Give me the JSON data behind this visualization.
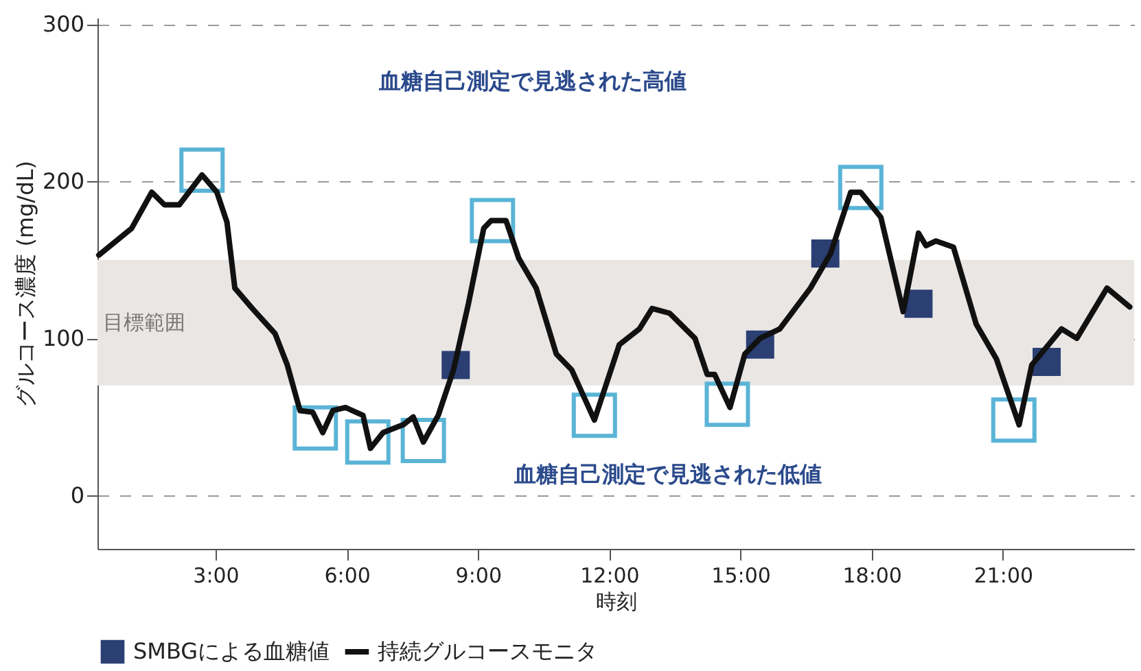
{
  "chart_data": {
    "type": "line",
    "xlabel": "時刻",
    "ylabel": "グルコース濃度 (mg/dL)",
    "xlim": [
      0.3,
      24
    ],
    "ylim": [
      -34,
      304
    ],
    "xticks": [
      {
        "value": 3,
        "label": "3:00"
      },
      {
        "value": 6,
        "label": "6:00"
      },
      {
        "value": 9,
        "label": "9:00"
      },
      {
        "value": 12,
        "label": "12:00"
      },
      {
        "value": 15,
        "label": "15:00"
      },
      {
        "value": 18,
        "label": "18:00"
      },
      {
        "value": 21,
        "label": "21:00"
      }
    ],
    "yticks": [
      0,
      100,
      200,
      300
    ],
    "grid": "y",
    "legend": "bottom",
    "series": [
      {
        "name": "持続グルコースモニタ",
        "color": "#111111",
        "line_style": "solid",
        "marker": "none",
        "x": [
          0.33,
          1.08,
          1.54,
          1.83,
          2.17,
          2.69,
          3.03,
          3.26,
          3.44,
          3.84,
          4.36,
          4.64,
          4.93,
          5.22,
          5.45,
          5.68,
          5.97,
          6.37,
          6.54,
          6.83,
          7.29,
          7.52,
          7.75,
          8.09,
          8.44,
          8.78,
          9.13,
          9.3,
          9.64,
          9.93,
          10.33,
          10.79,
          11.14,
          11.66,
          12.23,
          12.69,
          12.98,
          13.38,
          13.96,
          14.24,
          14.41,
          14.76,
          15.1,
          15.45,
          15.9,
          16.6,
          17.06,
          17.52,
          17.75,
          18.21,
          18.72,
          19.07,
          19.24,
          19.47,
          19.87,
          20.39,
          20.85,
          21.37,
          21.66,
          22.34,
          22.69,
          23.38,
          23.9
        ],
        "values": [
          153,
          170,
          193,
          185,
          185,
          204,
          193,
          174,
          132,
          119,
          103,
          83,
          54,
          53,
          40,
          54,
          56,
          51,
          30,
          40,
          45,
          50,
          34,
          51,
          80,
          122,
          170,
          175,
          175,
          151,
          132,
          90,
          80,
          48,
          96,
          106,
          119,
          116,
          100,
          77,
          77,
          56,
          90,
          100,
          106,
          132,
          154,
          193,
          193,
          177,
          117,
          167,
          159,
          162,
          158,
          109,
          87,
          45,
          83,
          106,
          100,
          132,
          120
        ]
      },
      {
        "type": "scatter",
        "color": "#5ab4d6",
        "marker": "square",
        "x": [
          2.69,
          5.28,
          6.48,
          7.75,
          9.33,
          11.66,
          14.7,
          17.75,
          21.25
        ],
        "values": [
          207,
          43,
          34,
          35,
          175,
          51,
          58,
          196,
          48
        ]
      },
      {
        "name": "SMBGによる血糖値",
        "type": "scatter",
        "color": "#2b3f73",
        "marker": "square",
        "x": [
          8.49,
          15.45,
          16.94,
          19.07,
          22.0
        ],
        "values": [
          83,
          96,
          154,
          122,
          85
        ]
      }
    ],
    "bands": [
      {
        "axis": "y",
        "from": 70,
        "to": 150,
        "label": "目標範囲",
        "color": "#e9e6e4"
      }
    ],
    "annotations": [
      "血糖自己測定で見逃された高値",
      "血糖自己測定で見逃された低値"
    ]
  }
}
